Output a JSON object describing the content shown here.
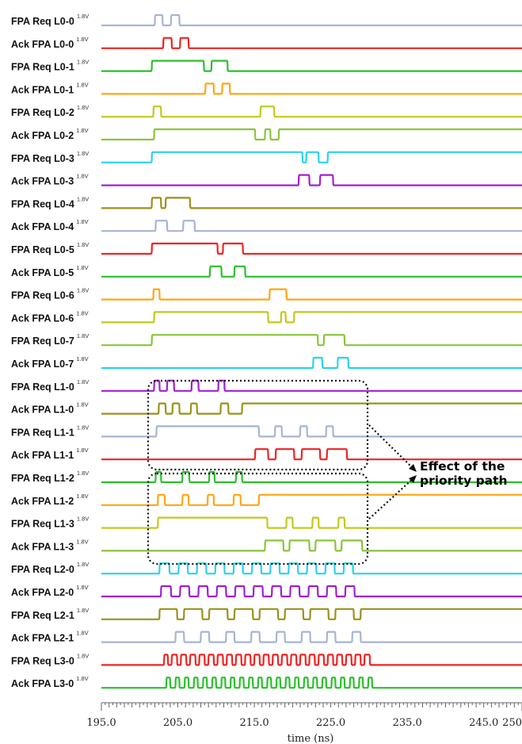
{
  "chart_data": {
    "type": "line",
    "xlabel": "time (ns)",
    "xlim": [
      195.0,
      250.0
    ],
    "xtick_labels": [
      "195.0",
      "205.0",
      "215.0",
      "225.0",
      "235.0",
      "245.0",
      "250"
    ],
    "xticks": [
      195,
      205,
      215,
      225,
      235,
      245,
      250
    ],
    "voltage_label": "1.8V",
    "annotation": {
      "line1": "Effect of the",
      "line2": "priority path"
    },
    "series": [
      {
        "name": "FPA Req L0-0",
        "color": "#a6b4d4",
        "transitions": [
          202.0,
          203.0,
          204.1,
          205.2
        ]
      },
      {
        "name": "Ack FPA L0-0",
        "color": "#ee2424",
        "transitions": [
          203.1,
          204.2,
          205.3,
          206.4
        ]
      },
      {
        "name": "FPA Req L0-1",
        "color": "#2cbf2c",
        "transitions": [
          201.6,
          208.4,
          209.4,
          211.5
        ]
      },
      {
        "name": "Ack FPA L0-1",
        "color": "#ffa514",
        "transitions": [
          208.6,
          209.7,
          210.8,
          211.8
        ]
      },
      {
        "name": "FPA Req L0-2",
        "color": "#c2c81c",
        "transitions": [
          201.8,
          202.8,
          215.8,
          217.6
        ]
      },
      {
        "name": "Ack FPA L0-2",
        "color": "#8ac43c",
        "transitions": [
          201.9,
          215.1,
          216.4,
          217.1,
          218.2
        ]
      },
      {
        "name": "FPA Req L0-3",
        "color": "#2ad2ee",
        "transitions": [
          201.6,
          221.3,
          221.8,
          223.4,
          224.6
        ]
      },
      {
        "name": "Ack FPA L0-3",
        "color": "#a020d0",
        "transitions": [
          220.8,
          222.2,
          223.6,
          225.3
        ]
      },
      {
        "name": "FPA Req L0-4",
        "color": "#9a921a",
        "transitions": [
          201.6,
          202.8,
          203.4,
          206.6
        ]
      },
      {
        "name": "Ack FPA L0-4",
        "color": "#a6b4d4",
        "transitions": [
          202.1,
          203.6,
          205.7,
          207.2
        ]
      },
      {
        "name": "FPA Req L0-5",
        "color": "#ee2424",
        "transitions": [
          201.6,
          210.2,
          210.9,
          213.5
        ]
      },
      {
        "name": "Ack FPA L0-5",
        "color": "#2cbf2c",
        "transitions": [
          209.2,
          210.7,
          212.4,
          213.8
        ]
      },
      {
        "name": "FPA Req L0-6",
        "color": "#ffa514",
        "transitions": [
          201.8,
          202.6,
          217.0,
          219.2
        ]
      },
      {
        "name": "Ack FPA L0-6",
        "color": "#c2c81c",
        "transitions": [
          201.9,
          216.8,
          218.5,
          219.1,
          220.2
        ]
      },
      {
        "name": "FPA Req L0-7",
        "color": "#8ac43c",
        "transitions": [
          201.6,
          223.3,
          224.1,
          226.8
        ]
      },
      {
        "name": "Ack FPA L0-7",
        "color": "#2ad2ee",
        "transitions": [
          222.7,
          223.9,
          225.9,
          227.3
        ]
      },
      {
        "name": "FPA Req L1-0",
        "color": "#a020d0",
        "transitions": [
          201.9,
          202.6,
          203.6,
          204.5,
          206.8,
          207.7,
          210.3,
          211.1
        ]
      },
      {
        "name": "Ack FPA L1-0",
        "color": "#9a921a",
        "transitions": [
          202.5,
          203.4,
          204.3,
          205.2,
          206.7,
          207.5,
          210.6,
          211.6,
          213.4
        ]
      },
      {
        "name": "FPA Req L1-1",
        "color": "#a6b4d4",
        "transitions": [
          202.2,
          215.6,
          217.7,
          218.6,
          221.0,
          221.9,
          224.4,
          225.3
        ]
      },
      {
        "name": "Ack FPA L1-1",
        "color": "#ee2424",
        "transitions": [
          215.1,
          216.8,
          217.8,
          220.2,
          221.2,
          223.6,
          224.5,
          227.1
        ]
      },
      {
        "name": "FPA Req L1-2",
        "color": "#2cbf2c",
        "transitions": [
          202.1,
          202.8,
          205.6,
          206.5,
          209.1,
          209.8,
          212.6,
          213.4
        ]
      },
      {
        "name": "Ack FPA L1-2",
        "color": "#ffa514",
        "transitions": [
          202.4,
          203.3,
          205.6,
          206.4,
          208.9,
          209.7,
          212.3,
          213.2,
          215.6
        ]
      },
      {
        "name": "FPA Req L1-3",
        "color": "#c2c81c",
        "transitions": [
          202.4,
          216.7,
          219.2,
          220.0,
          222.6,
          223.4,
          226.0,
          226.8
        ]
      },
      {
        "name": "Ack FPA L1-3",
        "color": "#8ac43c",
        "transitions": [
          216.4,
          218.8,
          219.6,
          222.2,
          223.0,
          225.6,
          226.4,
          229.1
        ]
      },
      {
        "name": "FPA Req L2-0",
        "color": "#2ad2ee",
        "transitions": [
          202.6,
          203.9,
          205.1,
          206.3,
          207.5,
          208.7,
          209.9,
          211.1,
          212.3,
          213.5,
          214.7,
          215.9,
          217.1,
          218.3,
          219.5,
          220.7,
          221.9,
          223.1,
          224.3,
          225.5,
          226.7,
          227.9
        ]
      },
      {
        "name": "Ack FPA L2-0",
        "color": "#a020d0",
        "transitions": [
          202.8,
          204.1,
          205.3,
          206.5,
          207.7,
          208.9,
          210.1,
          211.3,
          212.5,
          213.7,
          214.9,
          216.1,
          217.3,
          218.5,
          219.7,
          220.9,
          222.1,
          223.3,
          224.5,
          225.7,
          226.9,
          228.1
        ]
      },
      {
        "name": "FPA Req L2-1",
        "color": "#9a921a",
        "transitions": [
          202.6,
          204.9,
          205.8,
          208.2,
          209.1,
          211.5,
          212.4,
          214.8,
          215.7,
          218.1,
          219.0,
          221.4,
          222.3,
          224.7,
          225.6,
          228.0,
          228.9
        ]
      },
      {
        "name": "Ack FPA L2-1",
        "color": "#a6b4d4",
        "transitions": [
          204.7,
          205.8,
          208.0,
          209.1,
          211.3,
          212.4,
          214.6,
          215.7,
          217.9,
          219.0,
          221.2,
          222.3,
          224.5,
          225.6,
          227.8,
          228.9
        ]
      },
      {
        "name": "FPA Req L3-0",
        "color": "#ee2424",
        "transitions": [
          203.2,
          203.7,
          204.2,
          204.9,
          205.4,
          206.1,
          206.6,
          207.3,
          207.8,
          208.5,
          209.0,
          209.7,
          210.2,
          210.9,
          211.4,
          212.1,
          212.6,
          213.3,
          213.8,
          214.5,
          215.0,
          215.7,
          216.2,
          216.9,
          217.4,
          218.1,
          218.6,
          219.3,
          219.8,
          220.5,
          221.0,
          221.7,
          222.2,
          222.9,
          223.4,
          224.1,
          224.6,
          225.3,
          225.8,
          226.5,
          227.0,
          227.7,
          228.2,
          228.9,
          229.4,
          230.1
        ]
      },
      {
        "name": "Ack FPA L3-0",
        "color": "#2cbf2c",
        "transitions": [
          203.5,
          204.0,
          204.7,
          205.2,
          205.9,
          206.4,
          207.1,
          207.6,
          208.3,
          208.8,
          209.5,
          210.0,
          210.7,
          211.2,
          211.9,
          212.4,
          213.1,
          213.6,
          214.3,
          214.8,
          215.5,
          216.0,
          216.7,
          217.2,
          217.9,
          218.4,
          219.1,
          219.6,
          220.3,
          220.8,
          221.5,
          222.0,
          222.7,
          223.2,
          223.9,
          224.4,
          225.1,
          225.6,
          226.3,
          226.8,
          227.5,
          228.0,
          228.7,
          229.2,
          229.9,
          230.4
        ]
      }
    ]
  }
}
